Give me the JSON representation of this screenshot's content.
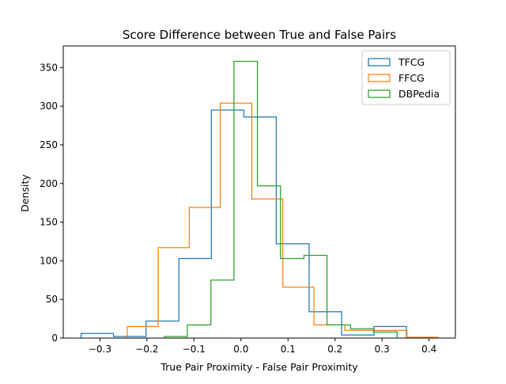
{
  "chart_data": {
    "type": "histogram",
    "title": "Score Difference between True and False Pairs",
    "xlabel": "True Pair Proximity - False Pair Proximity",
    "ylabel": "Density",
    "xlim": [
      -0.378,
      0.456
    ],
    "ylim": [
      0,
      378
    ],
    "xticks": [
      -0.3,
      -0.2,
      -0.1,
      0.0,
      0.1,
      0.2,
      0.3,
      0.4
    ],
    "xtick_labels": [
      "−0.3",
      "−0.2",
      "−0.1",
      "0.0",
      "0.1",
      "0.2",
      "0.3",
      "0.4"
    ],
    "yticks": [
      0,
      50,
      100,
      150,
      200,
      250,
      300,
      350
    ],
    "ytick_labels": [
      "0",
      "50",
      "100",
      "150",
      "200",
      "250",
      "300",
      "350"
    ],
    "grid": false,
    "legend_position": "top-right",
    "series": [
      {
        "name": "TFCG",
        "color": "#1f77b4",
        "edges": [
          -0.34,
          -0.271,
          -0.202,
          -0.132,
          -0.063,
          0.006,
          0.075,
          0.145,
          0.214,
          0.283,
          0.352
        ],
        "values": [
          6,
          2,
          22,
          103,
          295,
          286,
          122,
          34,
          4,
          15
        ]
      },
      {
        "name": "FFCG",
        "color": "#ff7f0e",
        "edges": [
          -0.242,
          -0.176,
          -0.11,
          -0.044,
          0.023,
          0.089,
          0.155,
          0.221,
          0.287,
          0.353,
          0.419
        ],
        "values": [
          15,
          117,
          169,
          304,
          180,
          66,
          17,
          10,
          10,
          1
        ]
      },
      {
        "name": "DBPedia",
        "color": "#2ca02c",
        "edges": [
          -0.163,
          -0.114,
          -0.064,
          -0.015,
          0.035,
          0.084,
          0.134,
          0.183,
          0.233,
          0.282,
          0.332
        ],
        "values": [
          2,
          17,
          75,
          358,
          197,
          103,
          107,
          17,
          12,
          8
        ]
      }
    ]
  }
}
